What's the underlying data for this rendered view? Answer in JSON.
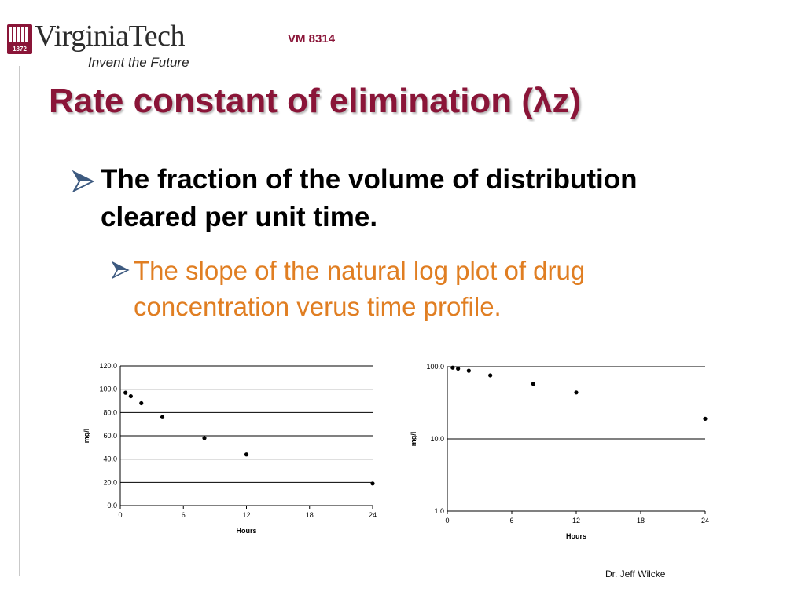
{
  "header": {
    "logo_text": "VirginiaTech",
    "logo_year": "1872",
    "tagline": "Invent the Future",
    "course_code": "VM 8314"
  },
  "slide": {
    "title": "Rate constant of elimination (λz)",
    "bullet_1": "The fraction of the volume of distribution cleared per unit time.",
    "bullet_2": "The slope of the natural log plot of drug concentration verus time profile."
  },
  "colors": {
    "brand_maroon": "#8a1538",
    "sub_bullet": "#e07e22",
    "arrow_fill": "#3d5a80"
  },
  "chart_data": [
    {
      "type": "scatter",
      "xlabel": "Hours",
      "ylabel": "mg/l",
      "xlim": [
        0,
        24
      ],
      "ylim": [
        0,
        120
      ],
      "xticks": [
        0,
        6,
        12,
        18,
        24
      ],
      "yticks": [
        "0.0",
        "20.0",
        "40.0",
        "60.0",
        "80.0",
        "100.0",
        "120.0"
      ],
      "x": [
        0.5,
        1,
        2,
        4,
        8,
        12,
        24
      ],
      "y": [
        97,
        94,
        88,
        76,
        58,
        44,
        19
      ],
      "grid": "horizontal"
    },
    {
      "type": "scatter",
      "xlabel": "Hours",
      "ylabel": "mg/l",
      "scale": "log",
      "xlim": [
        0,
        24
      ],
      "ylim": [
        1,
        100
      ],
      "xticks": [
        0,
        6,
        12,
        18,
        24
      ],
      "yticks": [
        "1.0",
        "10.0",
        "100.0"
      ],
      "x": [
        0.5,
        1,
        2,
        4,
        8,
        12,
        24
      ],
      "y": [
        97,
        94,
        88,
        76,
        58,
        44,
        19
      ],
      "grid": "horizontal"
    }
  ],
  "footer": {
    "author": "Dr. Jeff Wilcke"
  }
}
